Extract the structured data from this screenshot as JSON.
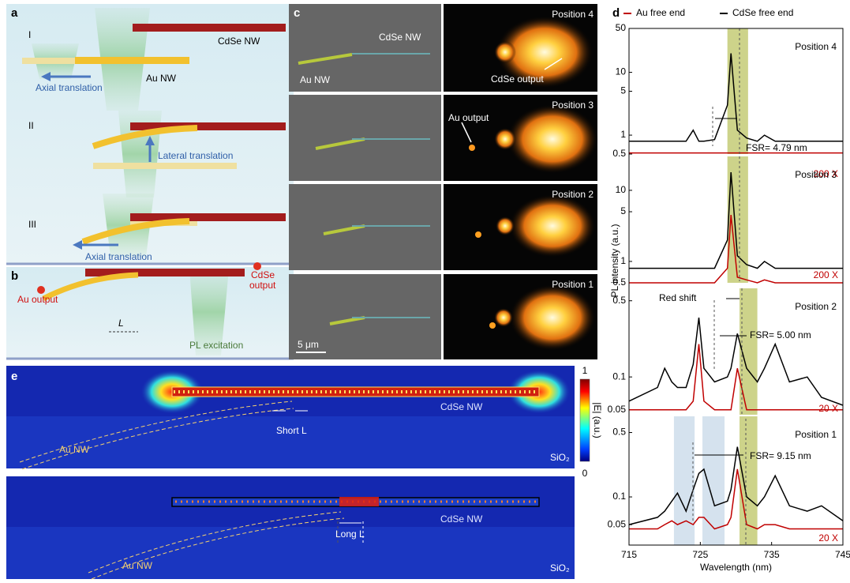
{
  "panels": {
    "a": {
      "label": "a",
      "steps": [
        "I",
        "II",
        "III"
      ],
      "cdse": "CdSe NW",
      "au": "Au NW",
      "axial_1": "Axial translation",
      "lateral": "Lateral translation",
      "axial_2": "Axial translation"
    },
    "b": {
      "label": "b",
      "au_output": "Au output",
      "cdse_output": [
        "CdSe",
        "output"
      ],
      "length": "L",
      "excitation": "PL excitation"
    },
    "c": {
      "label": "c",
      "cdse": "CdSe NW",
      "au": "Au NW",
      "positions": [
        "Position 4",
        "Position 3",
        "Position 2",
        "Position 1"
      ],
      "cdse_output": "CdSe output",
      "au_output": "Au output",
      "scale_bar": "5 μm"
    },
    "d": {
      "label": "d"
    },
    "e": {
      "label": "e",
      "top": {
        "cdse": "CdSe NW",
        "gap": "Short L",
        "au": "Au NW",
        "substrate": "SiO₂"
      },
      "bottom": {
        "cdse": "CdSe NW",
        "gap": "Long L",
        "au": "Au NW",
        "substrate": "SiO₂"
      },
      "colorbar": {
        "max": 1,
        "min": 0,
        "label": "|E| (a.u.)"
      }
    }
  },
  "chart_data": [
    {
      "type": "line",
      "yscale": "log",
      "xlim": [
        715,
        745
      ],
      "ylim": [
        0.5,
        50
      ],
      "yticks": [
        0.5,
        1,
        5,
        10,
        50
      ],
      "position": "Position 4",
      "fsr": "FSR= 4.79 nm",
      "scale_note": "200 X",
      "bands": [
        {
          "x": [
            728.8,
            731.7
          ],
          "color": "#cdd38a"
        }
      ],
      "x": [
        715,
        719,
        720,
        721,
        721.8,
        723,
        724,
        724.8,
        725.5,
        727,
        728.8,
        729.3,
        730.2,
        731.5,
        733,
        734,
        735.5,
        737.5,
        740,
        742,
        745
      ],
      "series": [
        {
          "name": "Au free end",
          "color": "#c00000",
          "values": [
            0.52,
            0.52,
            0.52,
            0.52,
            0.52,
            0.52,
            0.52,
            0.52,
            0.52,
            0.52,
            0.52,
            0.52,
            0.52,
            0.52,
            0.52,
            0.52,
            0.52,
            0.52,
            0.52,
            0.52,
            0.52
          ]
        },
        {
          "name": "CdSe free end",
          "color": "#000000",
          "values": [
            0.8,
            0.8,
            0.8,
            0.8,
            0.8,
            0.8,
            1.2,
            0.8,
            0.8,
            0.85,
            3,
            20,
            1.2,
            0.9,
            0.8,
            1.0,
            0.8,
            0.8,
            0.8,
            0.8,
            0.8
          ]
        }
      ]
    },
    {
      "type": "line",
      "yscale": "log",
      "xlim": [
        715,
        745
      ],
      "ylim": [
        0.5,
        30
      ],
      "yticks": [
        0.5,
        1,
        5,
        10
      ],
      "position": "Position 3",
      "scale_note": "200 X",
      "bands": [
        {
          "x": [
            728.8,
            731.7
          ],
          "color": "#cdd38a"
        }
      ],
      "x": [
        715,
        719,
        720,
        721,
        721.8,
        723,
        724,
        724.8,
        725.5,
        727,
        728.8,
        729.3,
        730.2,
        731.5,
        733,
        734,
        735.5,
        737.5,
        740,
        742,
        745
      ],
      "series": [
        {
          "color": "#c00000",
          "values": [
            0.5,
            0.5,
            0.5,
            0.5,
            0.5,
            0.5,
            0.5,
            0.5,
            0.5,
            0.5,
            0.8,
            4.5,
            0.6,
            0.55,
            0.5,
            0.55,
            0.5,
            0.5,
            0.5,
            0.5,
            0.5
          ]
        },
        {
          "color": "#000000",
          "values": [
            0.8,
            0.8,
            0.8,
            0.8,
            0.8,
            0.8,
            0.8,
            0.8,
            0.8,
            0.8,
            2,
            18,
            1.2,
            0.9,
            0.8,
            1.0,
            0.8,
            0.8,
            0.8,
            0.8,
            0.8
          ]
        }
      ]
    },
    {
      "type": "line",
      "yscale": "log",
      "xlim": [
        715,
        745
      ],
      "ylim": [
        0.045,
        0.65
      ],
      "yticks": [
        0.05,
        0.1,
        0.5
      ],
      "position": "Position 2",
      "fsr": "FSR= 5.00 nm",
      "scale_note": "20 X",
      "shift": "Red shift",
      "ylabel": "PL intensity (a.u.)",
      "bands": [
        {
          "x": [
            730.5,
            733
          ],
          "color": "#cdd38a"
        }
      ],
      "x": [
        715,
        719,
        720,
        721,
        721.8,
        723,
        724,
        724.8,
        725.5,
        727,
        728.8,
        729.3,
        730.2,
        731.5,
        733,
        734,
        735.5,
        737.5,
        740,
        742,
        745
      ],
      "series": [
        {
          "color": "#c00000",
          "values": [
            0.05,
            0.05,
            0.05,
            0.05,
            0.05,
            0.05,
            0.06,
            0.2,
            0.06,
            0.05,
            0.05,
            0.05,
            0.12,
            0.05,
            0.05,
            0.05,
            0.05,
            0.05,
            0.05,
            0.05,
            0.05
          ]
        },
        {
          "color": "#000000",
          "values": [
            0.06,
            0.08,
            0.12,
            0.09,
            0.08,
            0.08,
            0.13,
            0.35,
            0.12,
            0.09,
            0.1,
            0.12,
            0.25,
            0.12,
            0.09,
            0.12,
            0.2,
            0.09,
            0.1,
            0.065,
            0.055
          ]
        }
      ]
    },
    {
      "type": "line",
      "yscale": "log",
      "xlim": [
        715,
        745
      ],
      "ylim": [
        0.03,
        0.75
      ],
      "yticks": [
        0.05,
        0.1,
        0.5
      ],
      "xticks": [
        715,
        725,
        735,
        745
      ],
      "xlabel": "Wavelength (nm)",
      "position": "Position 1",
      "fsr": "FSR= 9.15 nm",
      "scale_note": "20 X",
      "bands": [
        {
          "x": [
            730.5,
            733
          ],
          "color": "#cdd38a"
        },
        {
          "x": [
            721.3,
            724.2
          ],
          "color": "#d5e2ee"
        },
        {
          "x": [
            725.3,
            728.4
          ],
          "color": "#d5e2ee"
        }
      ],
      "x": [
        715,
        719,
        720,
        721,
        721.8,
        723,
        724,
        724.8,
        725.5,
        727,
        728.8,
        729.3,
        730.2,
        731.5,
        733,
        734,
        735.5,
        737.5,
        740,
        742,
        745
      ],
      "series": [
        {
          "color": "#c00000",
          "values": [
            0.045,
            0.045,
            0.05,
            0.055,
            0.05,
            0.055,
            0.05,
            0.06,
            0.06,
            0.045,
            0.05,
            0.06,
            0.2,
            0.05,
            0.045,
            0.05,
            0.05,
            0.045,
            0.045,
            0.045,
            0.045
          ]
        },
        {
          "color": "#000000",
          "values": [
            0.05,
            0.06,
            0.07,
            0.09,
            0.11,
            0.07,
            0.12,
            0.18,
            0.2,
            0.08,
            0.09,
            0.12,
            0.35,
            0.1,
            0.08,
            0.1,
            0.17,
            0.08,
            0.07,
            0.08,
            0.055
          ]
        }
      ]
    }
  ]
}
